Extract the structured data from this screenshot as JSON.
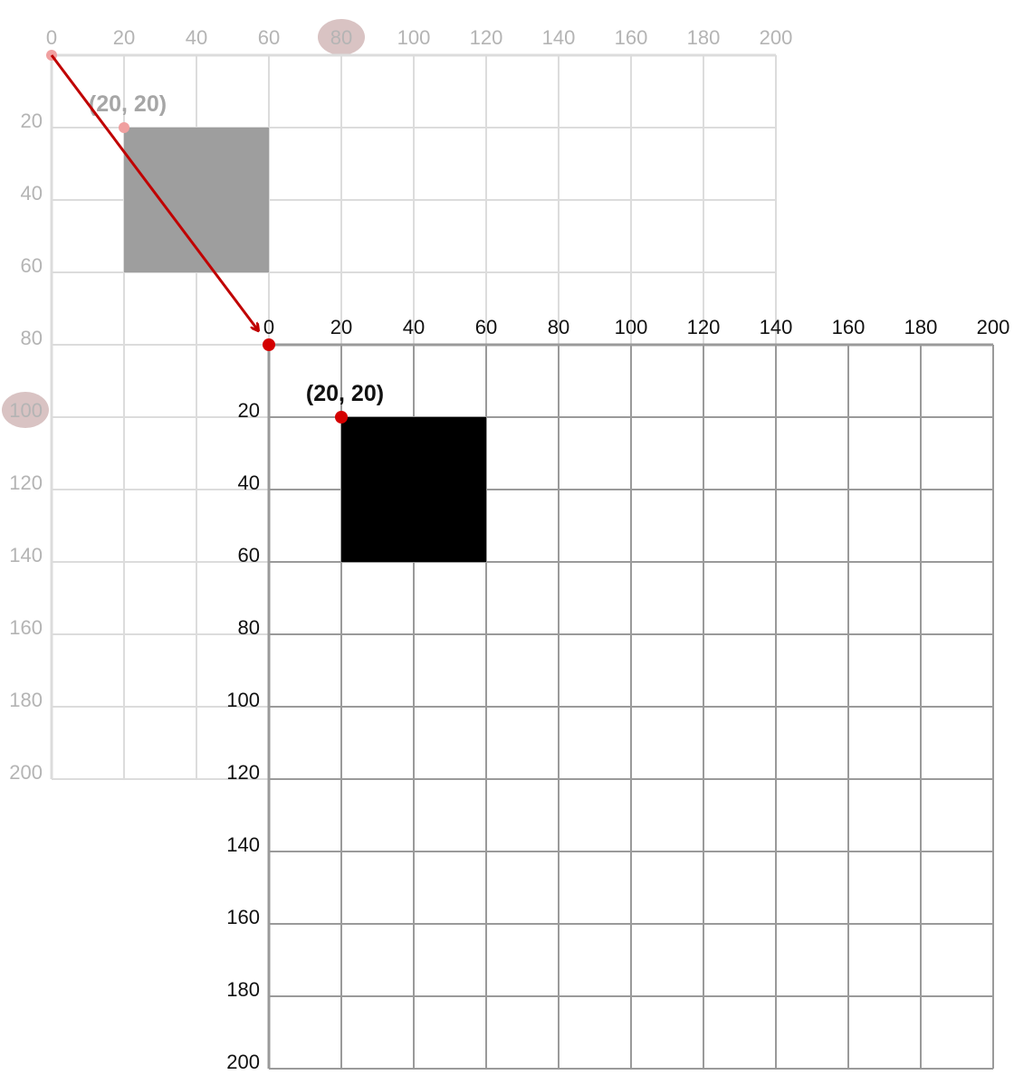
{
  "colors": {
    "faded_grid": "#dcdcdc",
    "faded_tick": "#b4b4b4",
    "faded_square": "#9e9e9e",
    "faded_point": "#f0a0a0",
    "faded_label": "#a6a6a6",
    "highlight": "#d9c3c3",
    "main_grid": "#9a9a9a",
    "main_square": "#000000",
    "accent": "#d40000",
    "arrow": "#c00000"
  },
  "icons": {
    "arrow": "translation-arrow-icon",
    "point": "point-marker-icon"
  },
  "original_grid": {
    "x_ticks": [
      "0",
      "20",
      "40",
      "60",
      "80",
      "100",
      "120",
      "140",
      "160",
      "180",
      "200"
    ],
    "y_ticks": [
      "20",
      "40",
      "60",
      "80",
      "100",
      "120",
      "140",
      "160",
      "180",
      "200"
    ],
    "highlighted_x_tick": "80",
    "highlighted_y_tick": "100",
    "square_label": "(20, 20)"
  },
  "translated_grid": {
    "x_ticks": [
      "0",
      "20",
      "40",
      "60",
      "80",
      "100",
      "120",
      "140",
      "160",
      "180",
      "200"
    ],
    "y_ticks": [
      "20",
      "40",
      "60",
      "80",
      "100",
      "120",
      "140",
      "160",
      "180",
      "200"
    ],
    "square_label": "(20, 20)"
  },
  "chart_data": {
    "type": "diagram",
    "x_range": [
      0,
      200
    ],
    "y_range": [
      0,
      200
    ],
    "grid_step": 20,
    "square": {
      "x": 20,
      "y": 20,
      "width": 40,
      "height": 40
    },
    "translation": {
      "x": 60,
      "y": 80
    }
  }
}
